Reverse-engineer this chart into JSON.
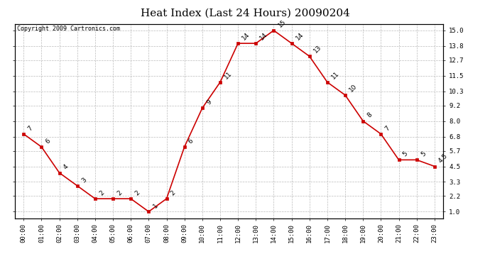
{
  "title": "Heat Index (Last 24 Hours) 20090204",
  "copyright": "Copyright 2009 Cartronics.com",
  "hours": [
    "00:00",
    "01:00",
    "02:00",
    "03:00",
    "04:00",
    "05:00",
    "06:00",
    "07:00",
    "08:00",
    "09:00",
    "10:00",
    "11:00",
    "12:00",
    "13:00",
    "14:00",
    "15:00",
    "16:00",
    "17:00",
    "18:00",
    "19:00",
    "20:00",
    "21:00",
    "22:00",
    "23:00"
  ],
  "values": [
    7,
    6,
    4,
    3,
    2,
    2,
    2,
    1,
    2,
    6,
    9,
    11,
    14,
    14,
    15,
    14,
    13,
    11,
    10,
    8,
    7,
    5,
    5,
    4.5
  ],
  "line_color": "#cc0000",
  "marker_color": "#cc0000",
  "bg_color": "#ffffff",
  "grid_color": "#bbbbbb",
  "yticks": [
    1.0,
    2.2,
    3.3,
    4.5,
    5.7,
    6.8,
    8.0,
    9.2,
    10.3,
    11.5,
    12.7,
    13.8,
    15.0
  ],
  "ylim": [
    0.5,
    15.5
  ],
  "title_fontsize": 11,
  "label_fontsize": 6.5,
  "copyright_fontsize": 6
}
